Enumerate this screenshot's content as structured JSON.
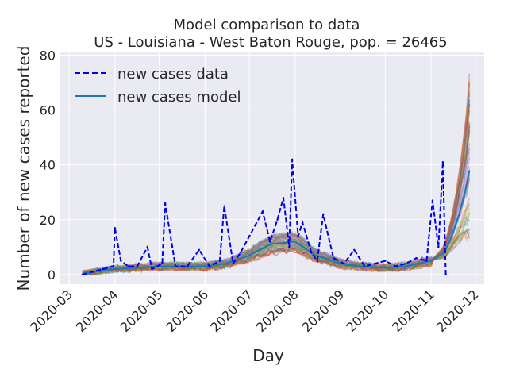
{
  "chart_data": {
    "type": "line",
    "title": "Model comparison to data",
    "subtitle": "US - Louisiana - West Baton Rouge, pop. = 26465",
    "xlabel": "Day",
    "ylabel": "Number of new cases reported",
    "x_ticks": [
      "2020-03-01",
      "2020-04-01",
      "2020-05-01",
      "2020-06-01",
      "2020-07-01",
      "2020-08-01",
      "2020-09-01",
      "2020-10-01",
      "2020-11-01",
      "2020-12-01"
    ],
    "x_tick_labels": [
      "2020-03",
      "2020-04",
      "2020-05",
      "2020-06",
      "2020-07",
      "2020-08",
      "2020-09",
      "2020-10",
      "2020-11",
      "2020-12"
    ],
    "xlim": [
      "2020-02-24",
      "2020-12-07"
    ],
    "y_ticks": [
      0,
      20,
      40,
      60,
      80
    ],
    "ylim": [
      -3.5,
      81
    ],
    "grid": true,
    "legend_position": "top-left",
    "colors": {
      "background": "#eaeaf2",
      "grid": "#ffffff",
      "data": "#0000ee",
      "model": "#1f77b4"
    },
    "series": [
      {
        "name": "new cases data",
        "style": "dashed",
        "color": "#0000ee",
        "x": [
          "2020-03-10",
          "2020-03-17",
          "2020-03-24",
          "2020-03-31",
          "2020-04-01",
          "2020-04-05",
          "2020-04-10",
          "2020-04-16",
          "2020-04-23",
          "2020-04-26",
          "2020-05-03",
          "2020-05-05",
          "2020-05-12",
          "2020-05-20",
          "2020-05-28",
          "2020-06-04",
          "2020-06-11",
          "2020-06-14",
          "2020-06-20",
          "2020-06-25",
          "2020-07-01",
          "2020-07-05",
          "2020-07-10",
          "2020-07-15",
          "2020-07-20",
          "2020-07-24",
          "2020-07-28",
          "2020-07-30",
          "2020-08-03",
          "2020-08-06",
          "2020-08-12",
          "2020-08-16",
          "2020-08-20",
          "2020-08-27",
          "2020-09-03",
          "2020-09-10",
          "2020-09-17",
          "2020-09-24",
          "2020-10-01",
          "2020-10-08",
          "2020-10-15",
          "2020-10-22",
          "2020-10-29",
          "2020-11-02",
          "2020-11-06",
          "2020-11-09",
          "2020-11-11"
        ],
        "values": [
          0,
          1,
          2,
          3,
          17,
          5,
          3,
          3,
          10,
          2,
          4,
          26,
          3,
          3,
          9,
          3,
          5,
          25,
          4,
          8,
          14,
          18,
          23,
          12,
          20,
          28,
          10,
          42,
          14,
          19,
          8,
          5,
          22,
          6,
          4,
          9,
          3,
          4,
          5,
          3,
          4,
          6,
          5,
          27,
          10,
          41,
          0
        ]
      },
      {
        "name": "new cases model",
        "style": "solid",
        "color": "#1f77b4",
        "x": [
          "2020-03-10",
          "2020-04-01",
          "2020-05-01",
          "2020-06-01",
          "2020-06-15",
          "2020-07-01",
          "2020-07-15",
          "2020-08-01",
          "2020-08-15",
          "2020-09-01",
          "2020-09-15",
          "2020-10-01",
          "2020-10-15",
          "2020-11-01",
          "2020-11-10",
          "2020-11-15",
          "2020-11-20",
          "2020-11-24",
          "2020-11-27"
        ],
        "values": [
          0.5,
          2,
          3,
          3,
          4,
          7,
          11,
          12,
          7,
          4,
          3,
          2.5,
          3,
          5,
          8,
          14,
          22,
          30,
          38
        ]
      }
    ]
  }
}
